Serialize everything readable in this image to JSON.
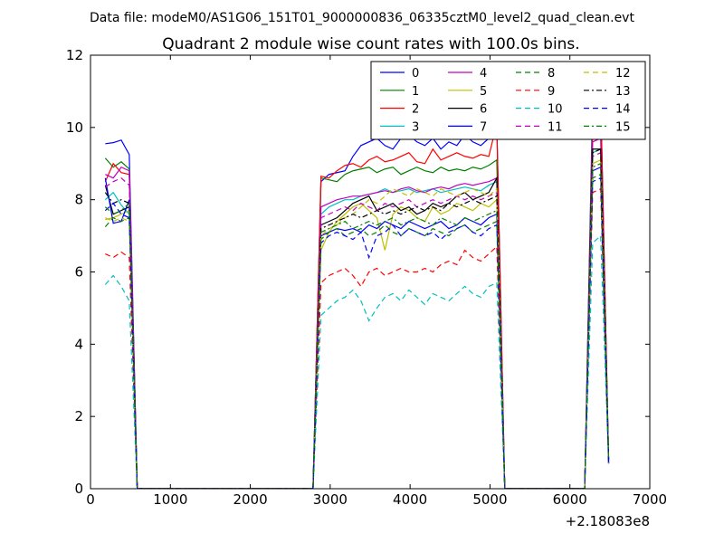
{
  "chart_data": {
    "type": "line",
    "suptitle": "Data file: modeM0/AS1G06_151T01_9000000836_06335cztM0_level2_quad_clean.evt",
    "title": "Quadrant 2 module wise count rates with 100.0s bins.",
    "xlabel": "",
    "ylabel": "",
    "x_offset_label": "+2.18083e8",
    "xlim": [
      0,
      7000
    ],
    "ylim": [
      0,
      12
    ],
    "x_ticks": [
      0,
      1000,
      2000,
      3000,
      4000,
      5000,
      6000,
      7000
    ],
    "y_ticks": [
      0,
      2,
      4,
      6,
      8,
      10,
      12
    ],
    "x_tick_labels": [
      "0",
      "1000",
      "2000",
      "3000",
      "4000",
      "5000",
      "6000",
      "7000"
    ],
    "y_tick_labels": [
      "0",
      "2",
      "4",
      "6",
      "8",
      "10",
      "12"
    ],
    "grid": false,
    "legend_position": "top-right",
    "legend_columns": 4,
    "gaps": [
      [
        750,
        2750
      ],
      [
        5350,
        6050
      ]
    ],
    "segments": [
      {
        "x": [
          185,
          285,
          385,
          485,
          585,
          685
        ]
      },
      {
        "x": [
          2785,
          2885,
          2985,
          3085,
          3185,
          3285,
          3385,
          3485,
          3585,
          3685,
          3785,
          3885,
          3985,
          4085,
          4185,
          4285,
          4385,
          4485,
          4585,
          4685,
          4785,
          4885,
          4985,
          5085,
          5185,
          5285
        ]
      },
      {
        "x": [
          6185,
          6285,
          6385,
          6485
        ]
      }
    ],
    "series": [
      {
        "name": "0",
        "color": "#0000ff",
        "dash": "solid",
        "base": [
          9.55,
          9.58,
          9.65,
          9.25,
          0.0,
          0.0
        ],
        "mid": [
          0.0,
          8.5,
          8.7,
          8.75,
          8.8,
          9.2,
          9.5,
          9.6,
          9.7,
          9.5,
          9.4,
          9.7,
          9.8,
          9.6,
          9.5,
          9.7,
          9.4,
          9.6,
          9.5,
          9.8,
          9.6,
          9.5,
          9.7,
          10.1,
          0.0,
          0.0
        ],
        "end": [
          0.0,
          10.8,
          10.9,
          0.7
        ]
      },
      {
        "name": "1",
        "color": "#008000",
        "dash": "solid",
        "base": [
          9.15,
          8.9,
          9.05,
          8.85,
          0.0,
          0.0
        ],
        "mid": [
          0.0,
          8.6,
          8.55,
          8.5,
          8.7,
          8.8,
          8.85,
          8.9,
          8.75,
          8.85,
          8.9,
          8.7,
          8.8,
          8.9,
          8.8,
          8.75,
          8.9,
          8.8,
          8.85,
          8.8,
          8.9,
          8.85,
          8.95,
          9.1,
          0.0,
          0.0
        ],
        "end": [
          0.0,
          10.3,
          10.4,
          0.8
        ]
      },
      {
        "name": "2",
        "color": "#ff0000",
        "dash": "solid",
        "base": [
          8.5,
          9.0,
          8.75,
          8.7,
          0.0,
          0.0
        ],
        "mid": [
          0.0,
          8.65,
          8.6,
          8.8,
          8.95,
          9.0,
          8.9,
          9.1,
          9.2,
          9.05,
          9.1,
          9.2,
          9.3,
          9.05,
          9.0,
          9.4,
          9.1,
          9.2,
          9.3,
          9.2,
          9.15,
          9.25,
          9.2,
          10.1,
          0.0,
          0.0
        ],
        "end": [
          0.0,
          10.0,
          10.9,
          0.8
        ]
      },
      {
        "name": "3",
        "color": "#00bfbf",
        "dash": "solid",
        "base": [
          8.0,
          8.2,
          7.85,
          7.6,
          0.0,
          0.0
        ],
        "mid": [
          0.0,
          7.6,
          7.8,
          7.9,
          8.0,
          8.0,
          8.1,
          8.15,
          8.2,
          8.3,
          8.2,
          8.25,
          8.3,
          8.2,
          8.25,
          8.3,
          8.2,
          8.25,
          8.3,
          8.35,
          8.3,
          8.25,
          8.4,
          8.5,
          0.0,
          0.0
        ],
        "end": [
          0.0,
          9.3,
          9.4,
          0.8
        ]
      },
      {
        "name": "4",
        "color": "#bf00bf",
        "dash": "solid",
        "base": [
          8.7,
          8.6,
          8.9,
          8.8,
          0.0,
          0.0
        ],
        "mid": [
          0.0,
          7.8,
          7.9,
          8.0,
          8.05,
          8.1,
          8.1,
          8.15,
          8.2,
          8.25,
          8.2,
          8.3,
          8.35,
          8.25,
          8.2,
          8.3,
          8.35,
          8.3,
          8.4,
          8.45,
          8.4,
          8.45,
          8.5,
          8.6,
          0.0,
          0.0
        ],
        "end": [
          0.0,
          9.6,
          9.7,
          0.8
        ]
      },
      {
        "name": "5",
        "color": "#bfbf00",
        "dash": "solid",
        "base": [
          7.45,
          7.5,
          7.6,
          7.7,
          0.0,
          0.0
        ],
        "mid": [
          0.0,
          6.6,
          7.1,
          7.4,
          7.6,
          7.8,
          7.9,
          7.7,
          7.5,
          6.6,
          7.6,
          7.8,
          7.7,
          7.5,
          7.4,
          7.8,
          7.6,
          7.7,
          7.9,
          7.8,
          7.7,
          7.9,
          7.8,
          8.0,
          0.0,
          0.0
        ],
        "end": [
          0.0,
          9.0,
          9.1,
          0.8
        ]
      },
      {
        "name": "6",
        "color": "#000000",
        "dash": "solid",
        "base": [
          8.4,
          7.6,
          7.7,
          7.8,
          0.0,
          0.0
        ],
        "mid": [
          0.0,
          7.3,
          7.4,
          7.5,
          7.7,
          7.9,
          8.0,
          8.1,
          7.7,
          7.8,
          7.9,
          7.7,
          7.8,
          7.6,
          7.7,
          7.9,
          7.8,
          7.9,
          8.1,
          8.2,
          8.0,
          8.1,
          8.2,
          8.6,
          0.0,
          0.0
        ],
        "end": [
          0.0,
          9.4,
          9.4,
          0.8
        ]
      },
      {
        "name": "7",
        "color": "#0000ff",
        "dash": "solid",
        "base": [
          8.6,
          7.35,
          7.4,
          8.0,
          0.0,
          0.0
        ],
        "mid": [
          0.0,
          7.0,
          7.1,
          7.2,
          7.15,
          7.2,
          7.1,
          7.3,
          7.2,
          7.4,
          7.3,
          7.2,
          7.4,
          7.3,
          7.2,
          7.3,
          7.4,
          7.2,
          7.3,
          7.5,
          7.4,
          7.3,
          7.5,
          7.6,
          0.0,
          0.0
        ],
        "end": [
          0.0,
          8.8,
          8.9,
          0.7
        ]
      },
      {
        "name": "8",
        "color": "#008000",
        "dash": "dashed",
        "base": [
          7.25,
          7.5,
          7.4,
          7.5,
          0.0,
          0.0
        ],
        "mid": [
          0.0,
          6.9,
          7.1,
          7.2,
          7.0,
          7.1,
          7.2,
          7.0,
          7.1,
          7.3,
          7.1,
          7.0,
          7.2,
          7.1,
          7.0,
          7.2,
          7.1,
          7.0,
          7.2,
          7.3,
          7.1,
          7.2,
          7.3,
          7.4,
          0.0,
          0.0
        ],
        "end": [
          0.0,
          8.6,
          8.7,
          0.7
        ]
      },
      {
        "name": "9",
        "color": "#ff0000",
        "dash": "dashed",
        "base": [
          6.5,
          6.4,
          6.55,
          6.4,
          0.0,
          0.0
        ],
        "mid": [
          0.0,
          5.7,
          5.9,
          6.0,
          6.1,
          5.9,
          5.6,
          6.0,
          6.1,
          5.9,
          6.0,
          6.1,
          6.0,
          6.0,
          6.1,
          6.0,
          6.2,
          6.3,
          6.2,
          6.6,
          6.4,
          6.3,
          6.5,
          6.7,
          0.0,
          0.0
        ],
        "end": [
          0.0,
          8.2,
          8.3,
          0.7
        ]
      },
      {
        "name": "10",
        "color": "#00bfbf",
        "dash": "dashed",
        "base": [
          5.65,
          5.9,
          5.6,
          5.2,
          0.0,
          0.0
        ],
        "mid": [
          0.0,
          4.8,
          5.0,
          5.2,
          5.3,
          5.5,
          5.2,
          4.65,
          5.0,
          5.3,
          5.4,
          5.2,
          5.5,
          5.3,
          5.1,
          5.4,
          5.3,
          5.2,
          5.4,
          5.6,
          5.4,
          5.3,
          5.6,
          5.7,
          0.0,
          0.0
        ],
        "end": [
          0.0,
          6.8,
          7.0,
          0.7
        ]
      },
      {
        "name": "11",
        "color": "#bf00bf",
        "dash": "dashed",
        "base": [
          8.35,
          8.5,
          8.6,
          8.4,
          0.0,
          0.0
        ],
        "mid": [
          0.0,
          7.5,
          7.6,
          7.7,
          7.8,
          7.7,
          7.9,
          7.8,
          7.7,
          7.9,
          7.8,
          7.9,
          8.0,
          7.8,
          7.9,
          8.0,
          7.9,
          8.0,
          8.1,
          8.0,
          8.1,
          8.0,
          8.1,
          8.2,
          0.0,
          0.0
        ],
        "end": [
          0.0,
          9.2,
          9.3,
          0.8
        ]
      },
      {
        "name": "12",
        "color": "#bfbf00",
        "dash": "dashed",
        "base": [
          7.5,
          7.4,
          7.5,
          7.4,
          0.0,
          0.0
        ],
        "mid": [
          0.0,
          7.0,
          7.2,
          7.3,
          7.5,
          7.6,
          7.8,
          8.0,
          7.9,
          8.1,
          8.3,
          8.2,
          8.1,
          8.3,
          8.2,
          8.1,
          8.3,
          8.2,
          8.1,
          8.2,
          8.3,
          8.2,
          8.1,
          8.3,
          0.0,
          0.0
        ],
        "end": [
          0.0,
          9.0,
          9.1,
          0.8
        ]
      },
      {
        "name": "13",
        "color": "#000000",
        "dash": "dashdot",
        "base": [
          8.2,
          7.9,
          8.0,
          7.9,
          0.0,
          0.0
        ],
        "mid": [
          0.0,
          7.2,
          7.3,
          7.4,
          7.5,
          7.6,
          7.5,
          7.6,
          7.7,
          7.6,
          7.7,
          7.6,
          7.7,
          7.8,
          7.7,
          7.8,
          7.7,
          7.9,
          7.8,
          7.9,
          8.0,
          7.9,
          8.0,
          8.1,
          0.0,
          0.0
        ],
        "end": [
          0.0,
          9.3,
          9.4,
          0.8
        ]
      },
      {
        "name": "14",
        "color": "#0000ff",
        "dash": "dashed",
        "base": [
          7.7,
          7.9,
          7.6,
          7.5,
          0.0,
          0.0
        ],
        "mid": [
          0.0,
          6.8,
          7.0,
          7.1,
          7.0,
          6.9,
          7.1,
          6.4,
          7.0,
          7.1,
          7.3,
          7.0,
          7.2,
          7.1,
          7.0,
          7.1,
          6.9,
          7.1,
          7.2,
          7.3,
          7.1,
          7.0,
          7.2,
          7.3,
          0.0,
          0.0
        ],
        "end": [
          0.0,
          8.5,
          8.6,
          0.7
        ]
      },
      {
        "name": "15",
        "color": "#008000",
        "dash": "dashdot",
        "base": [
          7.8,
          7.6,
          7.7,
          7.9,
          0.0,
          0.0
        ],
        "mid": [
          0.0,
          7.1,
          7.2,
          7.3,
          7.4,
          7.2,
          7.3,
          7.4,
          7.3,
          7.4,
          7.5,
          7.3,
          7.4,
          7.5,
          7.4,
          7.3,
          7.5,
          7.4,
          7.3,
          7.5,
          7.4,
          7.5,
          7.6,
          7.7,
          0.0,
          0.0
        ],
        "end": [
          0.0,
          8.9,
          9.0,
          0.8
        ]
      }
    ]
  }
}
